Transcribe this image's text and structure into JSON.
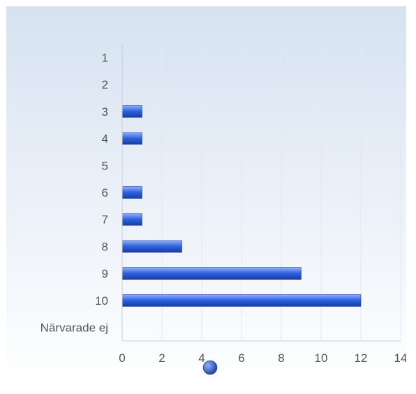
{
  "chart_data": {
    "type": "bar",
    "orientation": "horizontal",
    "categories": [
      "1",
      "2",
      "3",
      "4",
      "5",
      "6",
      "7",
      "8",
      "9",
      "10",
      "Närvarade ej"
    ],
    "values": [
      0,
      0,
      1,
      1,
      0,
      1,
      1,
      3,
      9,
      12,
      0
    ],
    "xlim": [
      0,
      14
    ],
    "xticks": [
      "0",
      "2",
      "4",
      "6",
      "8",
      "10",
      "12",
      "14"
    ],
    "grid": true,
    "legend_position": "bottom-center",
    "colors": {
      "bar_light": "#8fb0ff",
      "bar_mid": "#2c5fe0",
      "bar_dark": "#1a3d9c",
      "background_top": "#d6e2f1",
      "background_bottom": "#ffffff",
      "grid": "#e3e8ef",
      "axis": "#c8ced8",
      "text": "#555555"
    }
  }
}
